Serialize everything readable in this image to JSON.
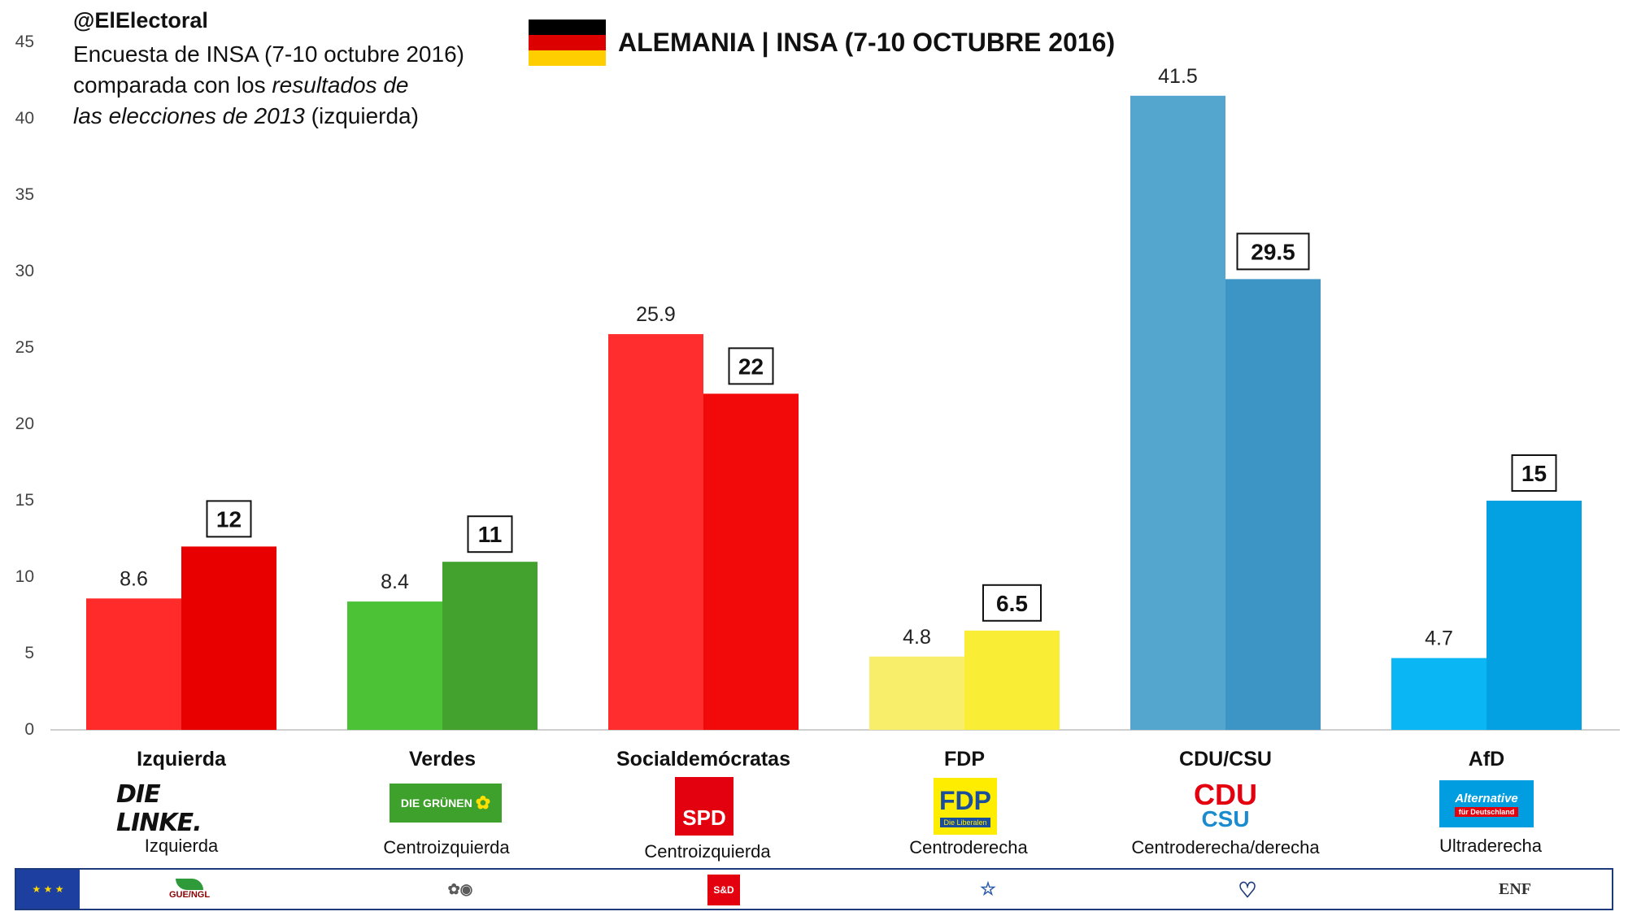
{
  "header": {
    "handle": "@ElElectoral",
    "subtitle_line1": "Encuesta de INSA (7-10 octubre 2016)",
    "subtitle_line2_a": "comparada con los ",
    "subtitle_line2_b": "resultados de",
    "subtitle_line3_a": "las elecciones de 2013",
    "subtitle_line3_b": " (izquierda)",
    "title": "ALEMANIA | INSA (7-10 OCTUBRE 2016)",
    "flag_colors": [
      "#000000",
      "#dd0000",
      "#ffce00"
    ]
  },
  "chart_data": {
    "type": "bar",
    "categories": [
      "Izquierda",
      "Verdes",
      "Socialdemócratas",
      "FDP",
      "CDU/CSU",
      "AfD"
    ],
    "series": [
      {
        "values": [
          8.6,
          8.4,
          25.9,
          4.8,
          41.5,
          4.7
        ]
      },
      {
        "values": [
          12,
          11,
          22,
          6.5,
          29.5,
          15
        ]
      }
    ],
    "colors_2013": [
      "#ff2a2a",
      "#4cc337",
      "#ff2d2d",
      "#f8ee6a",
      "#54a6cf",
      "#0bb6f5"
    ],
    "colors_poll": [
      "#e80000",
      "#42a22d",
      "#f20a0a",
      "#faed35",
      "#3c95c4",
      "#03a0e2"
    ],
    "ylim": [
      0,
      45
    ],
    "yticks": [
      0,
      5,
      10,
      15,
      20,
      25,
      30,
      35,
      40,
      45
    ],
    "grid": false,
    "xlabel": "",
    "ylabel": ""
  },
  "ideologies": [
    "Izquierda",
    "Centroizquierda",
    "Centroizquierda",
    "Centroderecha",
    "Centroderecha/derecha",
    "Ultraderecha"
  ],
  "logos": {
    "linke": "DIE LINKE.",
    "gruene": "DIE GRÜNEN",
    "spd": "SPD",
    "fdp": "FDP",
    "fdp_sub": "Die Liberalen",
    "cdu": "CDU",
    "csu": "CSU",
    "afd": "Alternative",
    "afd_sub": "für Deutschland"
  },
  "eu_groups": {
    "left": "GUE/NGL",
    "sd": "S&D",
    "enf": "ENF"
  }
}
